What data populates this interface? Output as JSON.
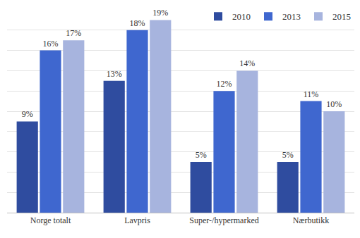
{
  "chart_data": {
    "type": "bar",
    "categories": [
      "Norge totalt",
      "Lavpris",
      "Super-/hypermarked",
      "Nærbutikk"
    ],
    "series": [
      {
        "name": "2010",
        "color": "#2f4c9f",
        "values": [
          9,
          13,
          5,
          5
        ],
        "value_labels": [
          "9%",
          "13%",
          "5%",
          "5%"
        ]
      },
      {
        "name": "2013",
        "color": "#3f67cf",
        "values": [
          16,
          18,
          12,
          11
        ],
        "value_labels": [
          "16%",
          "18%",
          "12%",
          "11%"
        ]
      },
      {
        "name": "2015",
        "color": "#a7b4de",
        "values": [
          17,
          19,
          14,
          10
        ],
        "value_labels": [
          "17%",
          "19%",
          "14%",
          "10%"
        ]
      }
    ],
    "ylim": [
      0,
      20
    ],
    "yticks": [
      0,
      2,
      4,
      6,
      8,
      10,
      12,
      14,
      16,
      18,
      20
    ],
    "grid": true,
    "legend": "top right",
    "data_labels": true,
    "tick_labels": "x"
  }
}
